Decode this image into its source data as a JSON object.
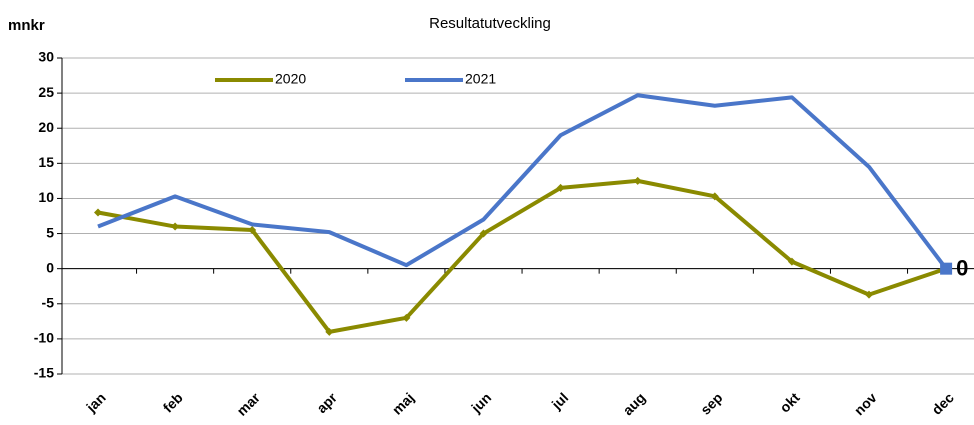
{
  "chart_data": {
    "type": "line",
    "title": "Resultatutveckling",
    "y_label": "mnkr",
    "categories": [
      "jan",
      "feb",
      "mar",
      "apr",
      "maj",
      "jun",
      "jul",
      "aug",
      "sep",
      "okt",
      "nov",
      "dec"
    ],
    "series": [
      {
        "name": "2020",
        "color": "#8a8a00",
        "values": [
          8,
          6,
          5.5,
          -9,
          -7,
          5,
          11.5,
          12.5,
          10.3,
          1,
          -3.7,
          0
        ]
      },
      {
        "name": "2021",
        "color": "#4a76c9",
        "values": [
          6,
          10.3,
          6.3,
          5.2,
          0.5,
          7,
          19,
          24.7,
          23.2,
          24.4,
          14.5,
          0
        ]
      }
    ],
    "ylim": [
      -15,
      30
    ],
    "yticks": [
      -15,
      -10,
      -5,
      0,
      5,
      10,
      15,
      20,
      25,
      30
    ],
    "grid": true,
    "legend": "top"
  }
}
